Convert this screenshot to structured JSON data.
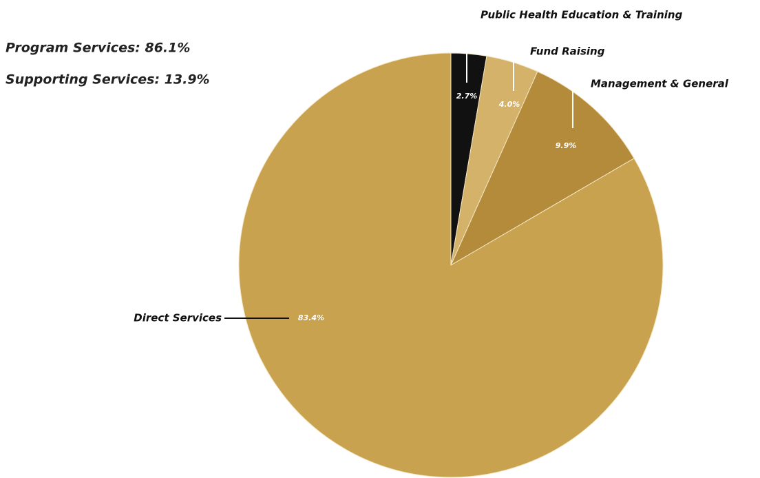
{
  "chart_data": {
    "type": "pie",
    "annotations": [
      "Program Services: 86.1%",
      "Supporting Services: 13.9%"
    ],
    "categories": [
      "Public Health Education & Training",
      "Fund Raising",
      "Management & General",
      "Direct Services"
    ],
    "values": [
      2.7,
      4.0,
      9.9,
      83.4
    ],
    "value_labels": [
      "2.7%",
      "4.0%",
      "9.9%",
      "83.4%"
    ],
    "colors": [
      "#111111",
      "#d4b26a",
      "#b38b3a",
      "#c9a24f"
    ]
  }
}
